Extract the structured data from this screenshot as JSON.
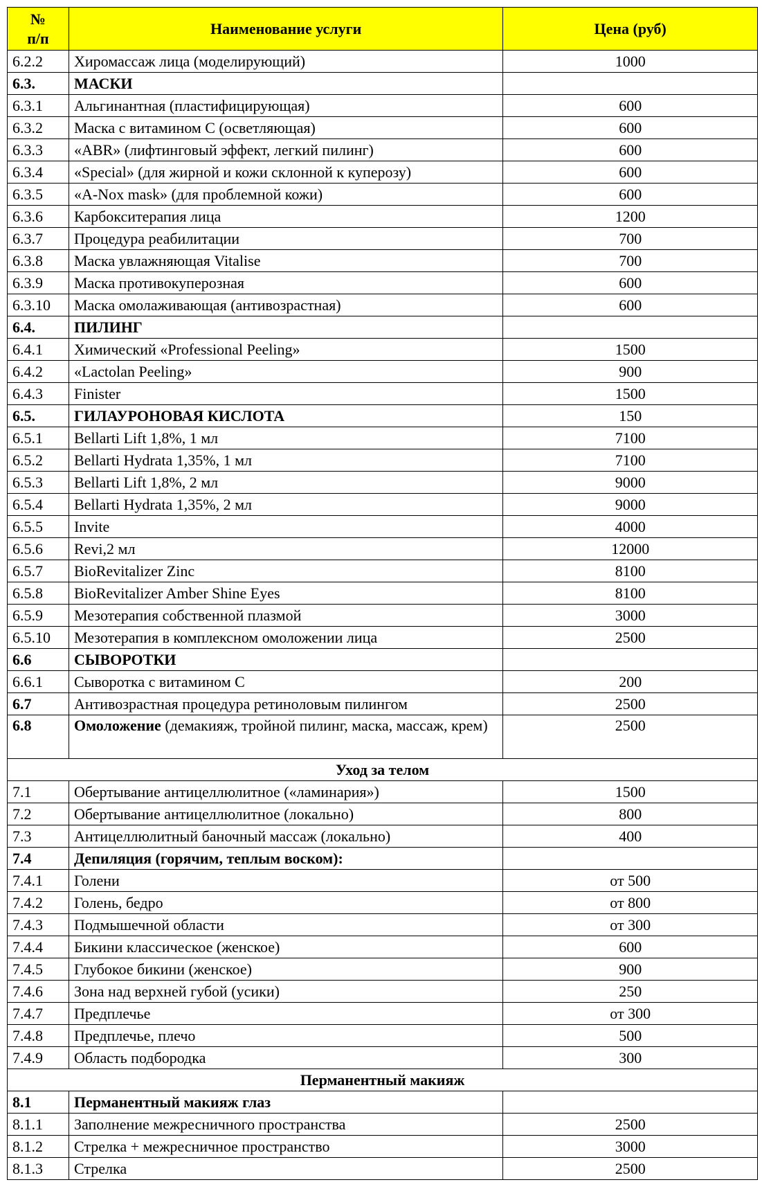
{
  "header": {
    "num": "№\nп/п",
    "name": "Наименование услуги",
    "price": "Цена (руб)"
  },
  "colors": {
    "header_bg": "#ffff00"
  },
  "rows": [
    {
      "num": "6.2.2",
      "name": "Хиромассаж лица (моделирующий)",
      "price": "1000"
    },
    {
      "num": "6.3.",
      "name": "МАСКИ",
      "price": "",
      "bold": true
    },
    {
      "num": "6.3.1",
      "name": "Альгинантная (пластифицирующая)",
      "price": "600"
    },
    {
      "num": "6.3.2",
      "name": "Маска с витамином С (осветляющая)",
      "price": "600"
    },
    {
      "num": "6.3.3",
      "name": "«ABR» (лифтинговый эффект, легкий пилинг)",
      "price": "600"
    },
    {
      "num": "6.3.4",
      "name": "«Special» (для жирной и кожи склонной к куперозу)",
      "price": "600"
    },
    {
      "num": "6.3.5",
      "name": "«A-Nox mask» (для проблемной кожи)",
      "price": "600"
    },
    {
      "num": "6.3.6",
      "name": "Карбокситерапия лица",
      "price": "1200"
    },
    {
      "num": "6.3.7",
      "name": "Процедура реабилитации",
      "price": "700"
    },
    {
      "num": "6.3.8",
      "name": "Маска увлажняющая Vitalise",
      "price": "700"
    },
    {
      "num": "6.3.9",
      "name": "Маска противокуперозная",
      "price": "600"
    },
    {
      "num": "6.3.10",
      "name": "Маска омолаживающая (антивозрастная)",
      "price": "600"
    },
    {
      "num": "6.4.",
      "name": "ПИЛИНГ",
      "price": "",
      "bold": true
    },
    {
      "num": "6.4.1",
      "name": "Химический «Professional Peeling»",
      "price": "1500"
    },
    {
      "num": "6.4.2",
      "name": "«Lactolan Peeling»",
      "price": "900"
    },
    {
      "num": "6.4.3",
      "name": "Finister",
      "price": "1500"
    },
    {
      "num": "6.5.",
      "name": "ГИЛАУРОНОВАЯ КИСЛОТА",
      "price": "150",
      "bold": true
    },
    {
      "num": "6.5.1",
      "name": "Bellarti Lift 1,8%, 1 мл",
      "price": "7100"
    },
    {
      "num": "6.5.2",
      "name": "Bellarti Hydrata 1,35%, 1 мл",
      "price": "7100"
    },
    {
      "num": "6.5.3",
      "name": "Bellarti Lift 1,8%, 2 мл",
      "price": "9000"
    },
    {
      "num": "6.5.4",
      "name": "Bellarti Hydrata 1,35%, 2 мл",
      "price": "9000"
    },
    {
      "num": "6.5.5",
      "name": "Invite",
      "price": "4000"
    },
    {
      "num": "6.5.6",
      "name": "Revi,2 мл",
      "price": "12000"
    },
    {
      "num": "6.5.7",
      "name": "BioRevitalizer Zinc",
      "price": "8100"
    },
    {
      "num": "6.5.8",
      "name": "BioRevitalizer Amber Shine Eyes",
      "price": "8100"
    },
    {
      "num": "6.5.9",
      "name": "Мезотерапия собственной плазмой",
      "price": "3000"
    },
    {
      "num": "6.5.10",
      "name": "Мезотерапия в комплексном омоложении лица",
      "price": "2500"
    },
    {
      "num": "6.6",
      "name": "СЫВОРОТКИ",
      "price": "",
      "bold": true
    },
    {
      "num": "6.6.1",
      "name": "Сыворотка с витамином  С",
      "price": "200"
    },
    {
      "num": "6.7",
      "name": "Антивозрастная процедура ретиноловым пилингом",
      "price": "2500",
      "boldnum": true
    },
    {
      "num": "6.8",
      "name_bold": "Омоложение",
      "name": " (демакияж, тройной пилинг, маска, массаж, крем)",
      "price": "2500",
      "boldnum": true,
      "tall": true
    },
    {
      "section": "Уход за телом"
    },
    {
      "num": "7.1",
      "name": "Обертывание антицеллюлитное («ламинария»)",
      "price": "1500"
    },
    {
      "num": "7.2",
      "name": "Обертывание антицеллюлитное (локально)",
      "price": "800"
    },
    {
      "num": "7.3",
      "name": "Антицеллюлитный баночный массаж (локально)",
      "price": "400"
    },
    {
      "num": "7.4",
      "name": "Депиляция (горячим, теплым воском):",
      "price": "",
      "bold": true
    },
    {
      "num": "7.4.1",
      "name": "Голени",
      "price": "от 500"
    },
    {
      "num": "7.4.2",
      "name": "Голень, бедро",
      "price": "от 800"
    },
    {
      "num": "7.4.3",
      "name": "Подмышечной области",
      "price": "от 300"
    },
    {
      "num": "7.4.4",
      "name": "Бикини классическое (женское)",
      "price": "600"
    },
    {
      "num": "7.4.5",
      "name": "Глубокое бикини (женское)",
      "price": "900"
    },
    {
      "num": "7.4.6",
      "name": "Зона над верхней губой (усики)",
      "price": "250"
    },
    {
      "num": "7.4.7",
      "name": "Предплечье",
      "price": "от 300"
    },
    {
      "num": "7.4.8",
      "name": "Предплечье, плечо",
      "price": "500"
    },
    {
      "num": "7.4.9",
      "name": "Область подбородка",
      "price": "300"
    },
    {
      "section": "Перманентный макияж"
    },
    {
      "num": "8.1",
      "name": "Перманентный макияж глаз",
      "price": "",
      "bold": true
    },
    {
      "num": "8.1.1",
      "name": "Заполнение межресничного пространства",
      "price": "2500"
    },
    {
      "num": "8.1.2",
      "name": "Стрелка + межресничное пространство",
      "price": "3000"
    },
    {
      "num": "8.1.3",
      "name": "Стрелка",
      "price": "2500"
    }
  ]
}
